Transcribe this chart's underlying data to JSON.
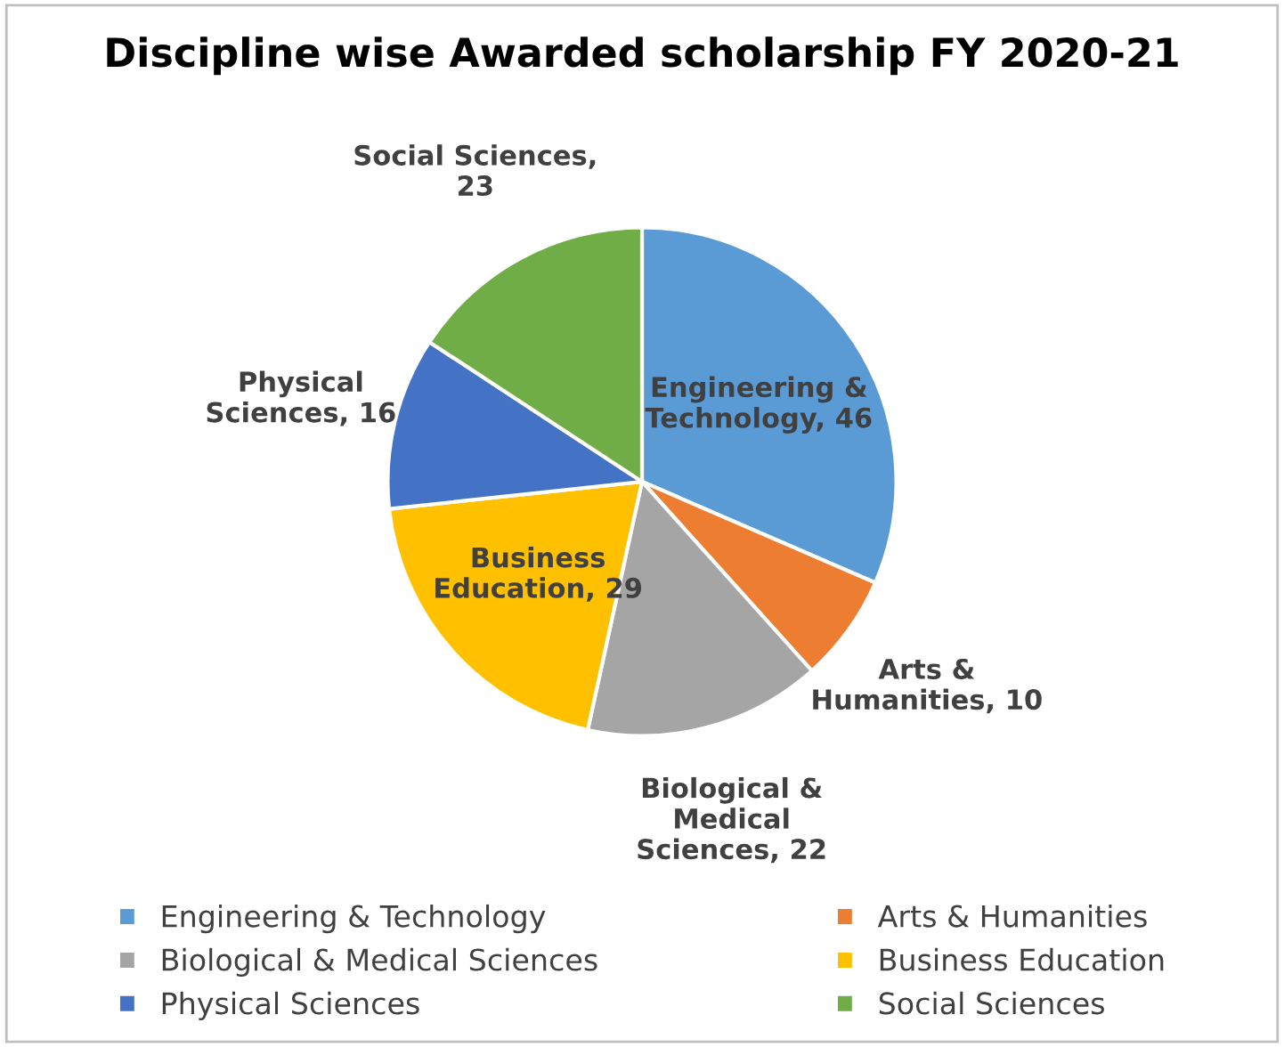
{
  "chart_data": {
    "type": "pie",
    "title": "Discipline wise Awarded scholarship FY 2020-21",
    "categories": [
      "Engineering & Technology",
      "Arts & Humanities",
      "Biological & Medical Sciences",
      "Business Education",
      "Physical Sciences",
      "Social Sciences"
    ],
    "values": [
      46,
      10,
      22,
      29,
      16,
      23
    ],
    "colors": [
      "#5b9bd5",
      "#ed7d31",
      "#a5a5a5",
      "#ffc000",
      "#4472c4",
      "#70ad47"
    ],
    "value_labels": [
      "Engineering & Technology, 46",
      "Arts & Humanities, 10",
      "Biological & Medical Sciences, 22",
      "Business Education, 29",
      "Physical Sciences, 16",
      "Social Sciences, 23"
    ],
    "legend": "bottom"
  }
}
